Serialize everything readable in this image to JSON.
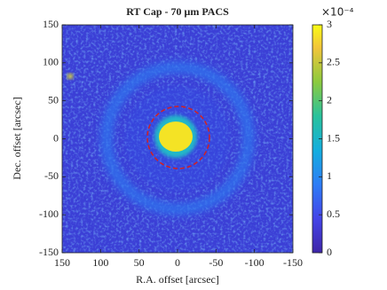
{
  "chart_data": {
    "type": "image",
    "title": "RT Cap - 70 μm PACS",
    "x_label": "R.A. offset [arcsec]",
    "y_label": "Dec. offset [arcsec]",
    "xlim": [
      150,
      -150
    ],
    "xticks": [
      150,
      100,
      50,
      0,
      -50,
      -100,
      -150
    ],
    "ylim": [
      -150,
      150
    ],
    "yticks": [
      -150,
      -100,
      -50,
      0,
      50,
      100,
      150
    ],
    "colorbar": {
      "clim": [
        0,
        3
      ],
      "ticks": [
        0,
        0.5,
        1,
        1.5,
        2,
        2.5,
        3
      ],
      "multiplier": "×10⁻⁴"
    }
  }
}
